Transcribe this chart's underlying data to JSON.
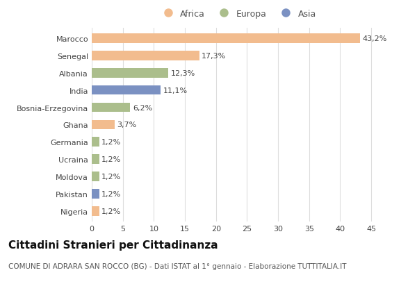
{
  "categories": [
    "Marocco",
    "Senegal",
    "Albania",
    "India",
    "Bosnia-Erzegovina",
    "Ghana",
    "Germania",
    "Ucraina",
    "Moldova",
    "Pakistan",
    "Nigeria"
  ],
  "values": [
    43.2,
    17.3,
    12.3,
    11.1,
    6.2,
    3.7,
    1.2,
    1.2,
    1.2,
    1.2,
    1.2
  ],
  "labels": [
    "43,2%",
    "17,3%",
    "12,3%",
    "11,1%",
    "6,2%",
    "3,7%",
    "1,2%",
    "1,2%",
    "1,2%",
    "1,2%",
    "1,2%"
  ],
  "colors": [
    "#F2BC8E",
    "#F2BC8E",
    "#ABBE8C",
    "#7B91C2",
    "#ABBE8C",
    "#F2BC8E",
    "#ABBE8C",
    "#ABBE8C",
    "#ABBE8C",
    "#7B91C2",
    "#F2BC8E"
  ],
  "legend_labels": [
    "Africa",
    "Europa",
    "Asia"
  ],
  "legend_colors": [
    "#F2BC8E",
    "#ABBE8C",
    "#7B91C2"
  ],
  "title": "Cittadini Stranieri per Cittadinanza",
  "subtitle": "COMUNE DI ADRARA SAN ROCCO (BG) - Dati ISTAT al 1° gennaio - Elaborazione TUTTITALIA.IT",
  "xlim": [
    0,
    47
  ],
  "xticks": [
    0,
    5,
    10,
    15,
    20,
    25,
    30,
    35,
    40,
    45
  ],
  "background_color": "#ffffff",
  "grid_color": "#dddddd",
  "bar_height": 0.55,
  "title_fontsize": 11,
  "subtitle_fontsize": 7.5,
  "tick_fontsize": 8,
  "label_fontsize": 8
}
